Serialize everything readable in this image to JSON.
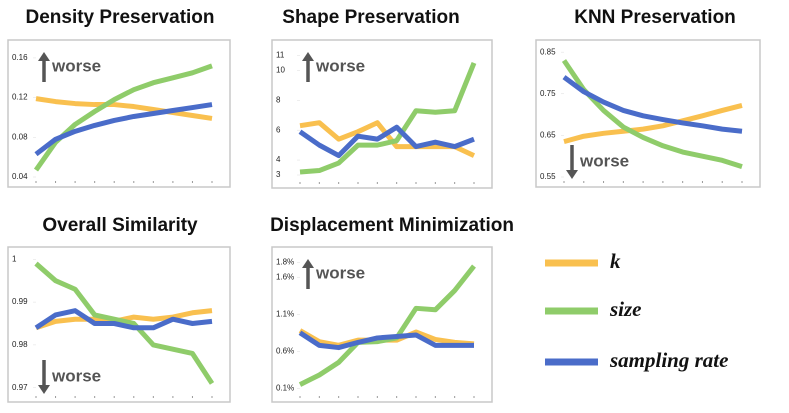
{
  "chart_data": [
    {
      "type": "line",
      "title": "Density Preservation",
      "annotation": "worse",
      "annotation_direction": "up",
      "categories": [
        null,
        null,
        null,
        null,
        null,
        null,
        null,
        null,
        null,
        null
      ],
      "series": [
        {
          "color": "#f9c04f",
          "values": [
            0.119,
            0.116,
            0.114,
            0.113,
            0.113,
            0.111,
            0.108,
            0.105,
            0.102,
            0.099
          ]
        },
        {
          "color": "#8fcc6a",
          "values": [
            0.047,
            0.075,
            0.093,
            0.106,
            0.118,
            0.128,
            0.135,
            0.14,
            0.145,
            0.152
          ]
        },
        {
          "color": "#4a6cc9",
          "values": [
            0.063,
            0.078,
            0.086,
            0.092,
            0.097,
            0.101,
            0.104,
            0.107,
            0.11,
            0.113
          ]
        }
      ],
      "ylim": [
        0.04,
        0.17
      ],
      "yticks": [
        0.04,
        0.08,
        0.12,
        0.16
      ]
    },
    {
      "type": "line",
      "title": "Shape Preservation",
      "annotation": "worse",
      "annotation_direction": "up",
      "categories": [
        null,
        null,
        null,
        null,
        null,
        null,
        null,
        null,
        null,
        null
      ],
      "series": [
        {
          "color": "#f9c04f",
          "values": [
            6.3,
            6.5,
            5.4,
            5.9,
            6.5,
            4.9,
            4.9,
            4.9,
            4.9,
            4.3
          ]
        },
        {
          "color": "#8fcc6a",
          "values": [
            3.2,
            3.3,
            3.8,
            5.0,
            5.0,
            5.3,
            7.3,
            7.2,
            7.3,
            10.5
          ]
        },
        {
          "color": "#4a6cc9",
          "values": [
            5.9,
            5.0,
            4.3,
            5.6,
            5.4,
            6.2,
            4.9,
            5.2,
            4.9,
            5.4
          ]
        }
      ],
      "ylim": [
        2.8,
        11.5
      ],
      "yticks": [
        3,
        4,
        6,
        8,
        10,
        11
      ]
    },
    {
      "type": "line",
      "title": "KNN Preservation",
      "annotation": "worse",
      "annotation_direction": "down",
      "categories": [
        null,
        null,
        null,
        null,
        null,
        null,
        null,
        null,
        null,
        null
      ],
      "series": [
        {
          "color": "#f9c04f",
          "values": [
            0.635,
            0.648,
            0.655,
            0.66,
            0.665,
            0.673,
            0.685,
            0.697,
            0.71,
            0.722
          ]
        },
        {
          "color": "#8fcc6a",
          "values": [
            0.83,
            0.76,
            0.71,
            0.67,
            0.645,
            0.625,
            0.61,
            0.6,
            0.59,
            0.575
          ]
        },
        {
          "color": "#4a6cc9",
          "values": [
            0.79,
            0.755,
            0.73,
            0.71,
            0.697,
            0.688,
            0.68,
            0.673,
            0.665,
            0.66
          ]
        }
      ],
      "ylim": [
        0.55,
        0.86
      ],
      "yticks": [
        0.55,
        0.65,
        0.75,
        0.85
      ]
    },
    {
      "type": "line",
      "title": "Overall Similarity",
      "annotation": "worse",
      "annotation_direction": "down",
      "categories": [
        null,
        null,
        null,
        null,
        null,
        null,
        null,
        null,
        null,
        null
      ],
      "series": [
        {
          "color": "#f9c04f",
          "values": [
            0.984,
            0.9855,
            0.986,
            0.986,
            0.9855,
            0.9865,
            0.986,
            0.9865,
            0.9875,
            0.988
          ]
        },
        {
          "color": "#8fcc6a",
          "values": [
            0.999,
            0.995,
            0.993,
            0.987,
            0.986,
            0.985,
            0.98,
            0.979,
            0.978,
            0.971
          ]
        },
        {
          "color": "#4a6cc9",
          "values": [
            0.984,
            0.987,
            0.988,
            0.985,
            0.985,
            0.984,
            0.984,
            0.986,
            0.985,
            0.9855
          ]
        }
      ],
      "ylim": [
        0.969,
        1.001
      ],
      "yticks": [
        0.97,
        0.98,
        0.99,
        1
      ]
    },
    {
      "type": "line",
      "title": "Displacement Minimization",
      "annotation": "worse",
      "annotation_direction": "up",
      "categories": [
        null,
        null,
        null,
        null,
        null,
        null,
        null,
        null,
        null,
        null
      ],
      "series": [
        {
          "color": "#f9c04f",
          "values": [
            0.88,
            0.73,
            0.68,
            0.75,
            0.75,
            0.75,
            0.86,
            0.76,
            0.72,
            0.7
          ]
        },
        {
          "color": "#8fcc6a",
          "values": [
            0.15,
            0.28,
            0.45,
            0.72,
            0.73,
            0.78,
            1.18,
            1.16,
            1.42,
            1.75
          ]
        },
        {
          "color": "#4a6cc9",
          "values": [
            0.85,
            0.68,
            0.65,
            0.72,
            0.78,
            0.8,
            0.82,
            0.68,
            0.68,
            0.68
          ]
        }
      ],
      "ylim": [
        0.05,
        1.9
      ],
      "yticks": [
        {
          "value": 0.1,
          "label": "0.1%"
        },
        {
          "value": 0.6,
          "label": "0.6%"
        },
        {
          "value": 1.1,
          "label": "1.1%"
        },
        {
          "value": 1.6,
          "label": "1.6%"
        },
        {
          "value": 1.8,
          "label": "1.8%"
        }
      ]
    }
  ],
  "legend": [
    {
      "name": "k",
      "color": "#f9c04f"
    },
    {
      "name": "size",
      "color": "#8fcc6a"
    },
    {
      "name": "sampling rate",
      "color": "#4a6cc9"
    }
  ]
}
